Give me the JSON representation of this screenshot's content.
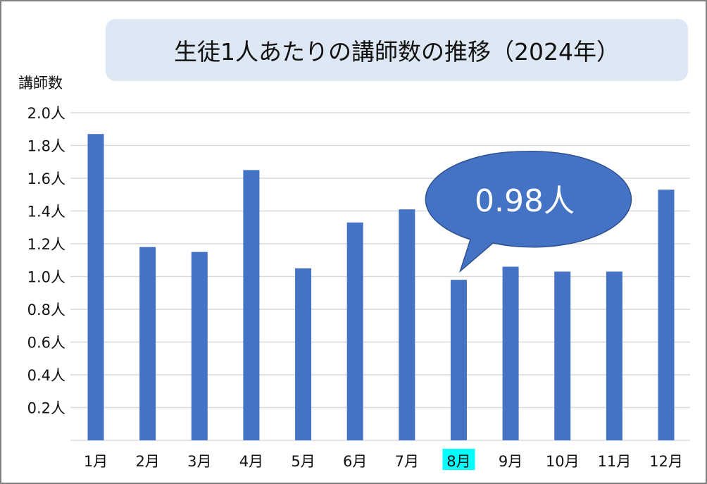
{
  "chart_data": {
    "type": "bar",
    "title": "生徒1人あたりの講師数の推移（2024年）",
    "ylabel": "講師数",
    "xlabel": "",
    "categories": [
      "1月",
      "2月",
      "3月",
      "4月",
      "5月",
      "6月",
      "7月",
      "8月",
      "9月",
      "10月",
      "11月",
      "12月"
    ],
    "values": [
      1.87,
      1.18,
      1.15,
      1.65,
      1.05,
      1.33,
      1.41,
      0.98,
      1.06,
      1.03,
      1.03,
      1.53
    ],
    "ylim": [
      0,
      2.0
    ],
    "yticks": [
      "0.2人",
      "0.4人",
      "0.6人",
      "0.8人",
      "1.0人",
      "1.2人",
      "1.4人",
      "1.6人",
      "1.8人",
      "2.0人"
    ],
    "grid": true,
    "legend": "none",
    "bar_color": "#4472c4",
    "highlight": {
      "category": "8月",
      "label_background": "#00ffff"
    },
    "annotation": {
      "text": "0.98人",
      "target": "8月",
      "color": "#4472c4"
    }
  }
}
